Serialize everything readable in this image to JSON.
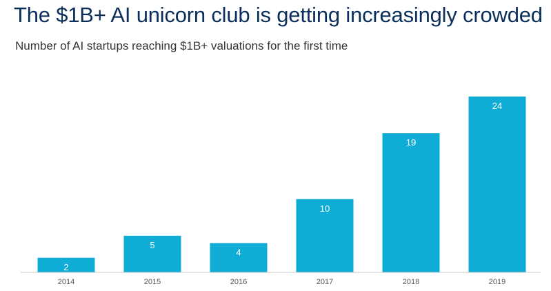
{
  "title": "The $1B+ AI unicorn club is getting increasingly crowded",
  "subtitle": "Number of AI startups reaching $1B+ valuations for the first time",
  "chart_data": {
    "type": "bar",
    "categories": [
      "2014",
      "2015",
      "2016",
      "2017",
      "2018",
      "2019"
    ],
    "values": [
      2,
      5,
      4,
      10,
      19,
      24
    ],
    "ylim": [
      0,
      24
    ],
    "grid": false,
    "legend": "none",
    "bar_color": "#0fadd6",
    "label_color": "#ffffff",
    "data_labels": "inside-top"
  }
}
